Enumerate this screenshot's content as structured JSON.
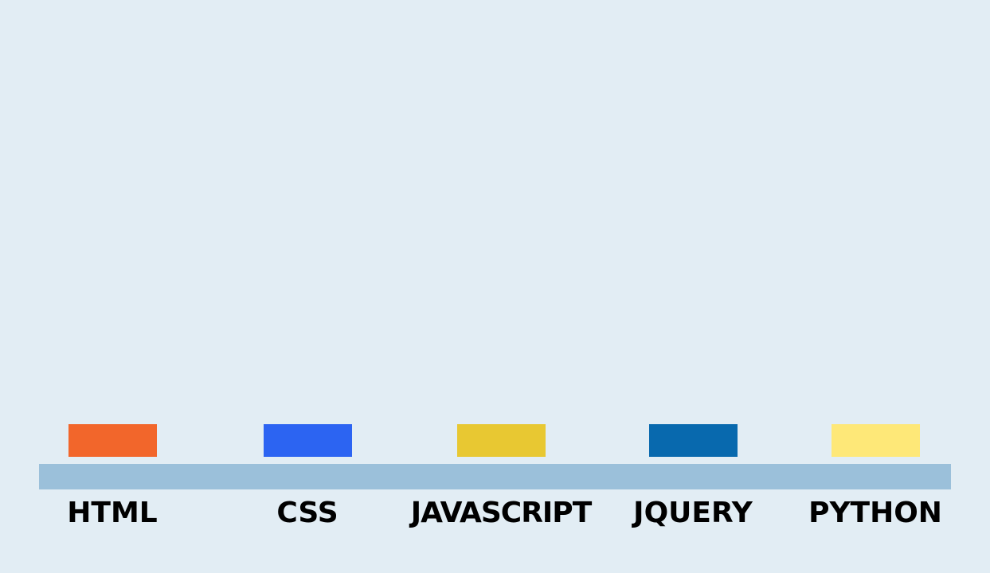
{
  "shelf": {
    "color": "#9bc0da"
  },
  "background_color": "#e2edf4",
  "skills": [
    {
      "label": "HTML",
      "color": "#f2662b"
    },
    {
      "label": "CSS",
      "color": "#2c64f2"
    },
    {
      "label": "JAVASCRIPT",
      "color": "#e8c832"
    },
    {
      "label": "JQUERY",
      "color": "#0869ae"
    },
    {
      "label": "PYTHON",
      "color": "#fee878"
    }
  ]
}
